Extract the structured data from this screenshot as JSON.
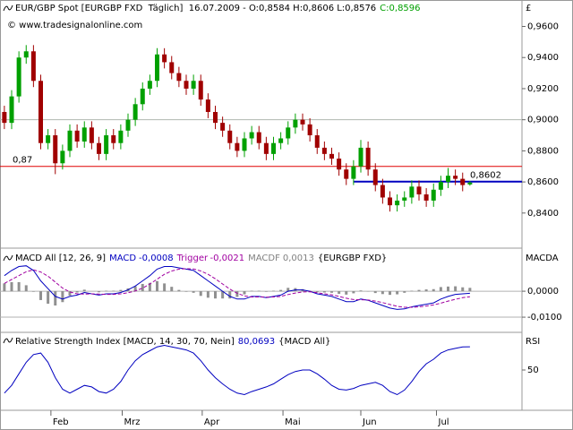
{
  "chart_data": [
    {
      "type": "candlestick",
      "title": "EUR/GBP Spot [EURGBP FXD  Täglich]  16.07.2009 - O:0,8584 H:0,8606 L:0,8576",
      "last_close_label": "C:0,8596",
      "watermark": "© www.tradesignalonline.com",
      "axis_label": "£",
      "up_color": "#00a000",
      "down_color": "#a00000",
      "open": [
        0.905,
        0.898,
        0.915,
        0.94,
        0.944,
        0.925,
        0.885,
        0.89,
        0.872,
        0.88,
        0.893,
        0.886,
        0.895,
        0.885,
        0.878,
        0.89,
        0.885,
        0.893,
        0.9,
        0.91,
        0.92,
        0.925,
        0.942,
        0.937,
        0.93,
        0.925,
        0.92,
        0.925,
        0.913,
        0.905,
        0.898,
        0.893,
        0.885,
        0.88,
        0.888,
        0.892,
        0.885,
        0.878,
        0.885,
        0.888,
        0.895,
        0.9,
        0.897,
        0.89,
        0.882,
        0.878,
        0.875,
        0.868,
        0.862,
        0.87,
        0.882,
        0.868,
        0.858,
        0.85,
        0.845,
        0.848,
        0.85,
        0.857,
        0.852,
        0.848,
        0.855,
        0.86,
        0.864,
        0.862,
        0.8584
      ],
      "high": [
        0.909,
        0.919,
        0.944,
        0.948,
        0.948,
        0.929,
        0.894,
        0.894,
        0.884,
        0.897,
        0.897,
        0.899,
        0.899,
        0.889,
        0.894,
        0.894,
        0.897,
        0.904,
        0.914,
        0.924,
        0.929,
        0.946,
        0.946,
        0.941,
        0.934,
        0.929,
        0.929,
        0.929,
        0.917,
        0.909,
        0.902,
        0.897,
        0.889,
        0.892,
        0.896,
        0.896,
        0.889,
        0.889,
        0.892,
        0.899,
        0.904,
        0.904,
        0.901,
        0.894,
        0.886,
        0.882,
        0.879,
        0.872,
        0.874,
        0.887,
        0.886,
        0.872,
        0.862,
        0.854,
        0.852,
        0.854,
        0.861,
        0.861,
        0.856,
        0.859,
        0.864,
        0.869,
        0.868,
        0.866,
        0.8606
      ],
      "low": [
        0.894,
        0.894,
        0.911,
        0.936,
        0.921,
        0.881,
        0.881,
        0.865,
        0.868,
        0.876,
        0.882,
        0.882,
        0.881,
        0.874,
        0.874,
        0.881,
        0.881,
        0.889,
        0.896,
        0.906,
        0.916,
        0.921,
        0.933,
        0.926,
        0.921,
        0.916,
        0.916,
        0.909,
        0.901,
        0.894,
        0.889,
        0.881,
        0.876,
        0.876,
        0.884,
        0.881,
        0.874,
        0.874,
        0.881,
        0.884,
        0.891,
        0.893,
        0.886,
        0.878,
        0.874,
        0.871,
        0.864,
        0.858,
        0.858,
        0.866,
        0.864,
        0.854,
        0.846,
        0.841,
        0.841,
        0.844,
        0.846,
        0.848,
        0.844,
        0.844,
        0.851,
        0.856,
        0.858,
        0.854,
        0.8576
      ],
      "close": [
        0.898,
        0.915,
        0.94,
        0.944,
        0.925,
        0.885,
        0.89,
        0.872,
        0.88,
        0.893,
        0.886,
        0.895,
        0.885,
        0.878,
        0.89,
        0.885,
        0.893,
        0.9,
        0.91,
        0.92,
        0.925,
        0.942,
        0.937,
        0.93,
        0.925,
        0.92,
        0.925,
        0.913,
        0.905,
        0.898,
        0.893,
        0.885,
        0.88,
        0.888,
        0.892,
        0.885,
        0.878,
        0.885,
        0.888,
        0.895,
        0.9,
        0.897,
        0.89,
        0.882,
        0.878,
        0.875,
        0.868,
        0.862,
        0.87,
        0.882,
        0.868,
        0.858,
        0.85,
        0.845,
        0.848,
        0.85,
        0.857,
        0.852,
        0.848,
        0.855,
        0.86,
        0.864,
        0.862,
        0.858,
        0.8596
      ],
      "xlim": [
        -0.6,
        65
      ],
      "ylim": [
        0.818,
        0.977
      ],
      "yticks": [
        {
          "value": 0.84,
          "label": "0,8400"
        },
        {
          "value": 0.86,
          "label": "0,8600"
        },
        {
          "value": 0.88,
          "label": "0,8800"
        },
        {
          "value": 0.9,
          "label": "0,9000"
        },
        {
          "value": 0.92,
          "label": "0,9200"
        },
        {
          "value": 0.94,
          "label": "0,9400"
        },
        {
          "value": 0.96,
          "label": "0,9600"
        }
      ],
      "hlines": [
        {
          "value": 0.9,
          "color": "#b0b8b0"
        },
        {
          "value": 0.87,
          "color": "#e00000",
          "label": "0,87"
        },
        {
          "value": 0.8602,
          "color": "#0000c0",
          "label": "0,8602",
          "from": 48
        }
      ]
    },
    {
      "type": "macd",
      "title": "MACD All [12, 26, 9]",
      "suffix": "{EURGBP FXD}",
      "axis_label": "MACDA",
      "xlim": [
        -0.6,
        65
      ],
      "ylim": [
        -0.0155,
        0.0159
      ],
      "yticks": [
        {
          "value": 0,
          "label": "0,0000"
        },
        {
          "value": -0.01,
          "label": "-0,0100"
        }
      ],
      "series": [
        {
          "name": "MACD",
          "last_label": "-0,0008",
          "color": "#0000c0",
          "values": [
            0.006,
            0.008,
            0.0095,
            0.0098,
            0.008,
            0.004,
            0.001,
            -0.002,
            -0.003,
            -0.002,
            -0.0015,
            -0.0005,
            -0.001,
            -0.0015,
            -0.001,
            -0.001,
            -0.0005,
            0.0005,
            0.002,
            0.004,
            0.006,
            0.0085,
            0.0095,
            0.0095,
            0.009,
            0.0085,
            0.008,
            0.006,
            0.004,
            0.002,
            0,
            -0.002,
            -0.003,
            -0.003,
            -0.002,
            -0.002,
            -0.0025,
            -0.002,
            -0.0015,
            0,
            0.0005,
            0.0005,
            0,
            -0.001,
            -0.0015,
            -0.002,
            -0.003,
            -0.004,
            -0.004,
            -0.003,
            -0.0035,
            -0.0045,
            -0.0055,
            -0.0065,
            -0.007,
            -0.0068,
            -0.006,
            -0.0055,
            -0.005,
            -0.0045,
            -0.003,
            -0.002,
            -0.0012,
            -0.001,
            -0.0008
          ]
        },
        {
          "name": "Trigger",
          "last_label": "-0,0021",
          "color": "#a000a0",
          "values": [
            0.003,
            0.0045,
            0.006,
            0.0075,
            0.0082,
            0.0074,
            0.0058,
            0.0035,
            0.0012,
            -0.0003,
            -0.001,
            -0.0011,
            -0.001,
            -0.0011,
            -0.0012,
            -0.0012,
            -0.001,
            -0.0006,
            0.0001,
            0.0012,
            0.0028,
            0.0046,
            0.0065,
            0.0078,
            0.0085,
            0.0087,
            0.0086,
            0.0078,
            0.0065,
            0.0048,
            0.0028,
            0.0008,
            -0.0008,
            -0.0018,
            -0.0022,
            -0.0022,
            -0.0023,
            -0.0022,
            -0.002,
            -0.0013,
            -0.0007,
            -0.0003,
            -0.0002,
            -0.0006,
            -0.001,
            -0.0014,
            -0.002,
            -0.0027,
            -0.0032,
            -0.0033,
            -0.0034,
            -0.0038,
            -0.0044,
            -0.0051,
            -0.0058,
            -0.0062,
            -0.0062,
            -0.006,
            -0.0057,
            -0.0053,
            -0.0046,
            -0.0038,
            -0.0031,
            -0.0025,
            -0.0021
          ]
        },
        {
          "name": "MACDF",
          "last_label": "0,0013",
          "color": "#909090",
          "values": [
            0.003,
            0.0035,
            0.0035,
            0.0023,
            -0.0002,
            -0.0034,
            -0.0048,
            -0.0055,
            -0.0042,
            -0.0017,
            -0.0005,
            0.0006,
            0,
            -0.0004,
            0.0002,
            0.0002,
            0.0005,
            0.0011,
            0.0019,
            0.0028,
            0.0032,
            0.0039,
            0.003,
            0.0017,
            0.0005,
            -0.0002,
            -0.0006,
            -0.0018,
            -0.0025,
            -0.0028,
            -0.0028,
            -0.0028,
            -0.0022,
            -0.0012,
            0.0002,
            0.0002,
            -0.0002,
            0.0002,
            0.0005,
            0.0013,
            0.0012,
            0.0008,
            0.0002,
            -0.0004,
            -0.0005,
            -0.0006,
            -0.001,
            -0.0013,
            -0.0008,
            0.0003,
            -0.0001,
            -0.0007,
            -0.0011,
            -0.0014,
            -0.0012,
            -0.0006,
            0.0002,
            0.0005,
            0.0007,
            0.0008,
            0.0016,
            0.0018,
            0.0019,
            0.0015,
            0.0013
          ]
        }
      ]
    },
    {
      "type": "line",
      "title": "Relative Strength Index [MACD, 14, 30, 70, Nein]",
      "last_label": "80,0693",
      "suffix": "{MACD All}",
      "axis_label": "RSI",
      "color": "#0000c0",
      "values": [
        20,
        30,
        45,
        60,
        70,
        72,
        60,
        40,
        25,
        20,
        25,
        30,
        28,
        22,
        20,
        25,
        35,
        50,
        62,
        70,
        75,
        80,
        82,
        80,
        78,
        76,
        72,
        62,
        50,
        40,
        32,
        25,
        20,
        18,
        22,
        25,
        28,
        32,
        38,
        44,
        48,
        50,
        50,
        45,
        38,
        30,
        25,
        24,
        26,
        30,
        32,
        34,
        30,
        22,
        18,
        24,
        35,
        48,
        58,
        64,
        72,
        76,
        78,
        80,
        80.0693
      ],
      "xlim": [
        -0.6,
        65
      ],
      "ylim": [
        0,
        100
      ],
      "yticks": [
        50
      ],
      "xticks": [
        {
          "value": 6.4,
          "label": "Feb"
        },
        {
          "value": 16.2,
          "label": "Mrz"
        },
        {
          "value": 27.2,
          "label": "Apr"
        },
        {
          "value": 38.3,
          "label": "Mai"
        },
        {
          "value": 49,
          "label": "Jun"
        },
        {
          "value": 59.4,
          "label": "Jul"
        }
      ]
    }
  ]
}
